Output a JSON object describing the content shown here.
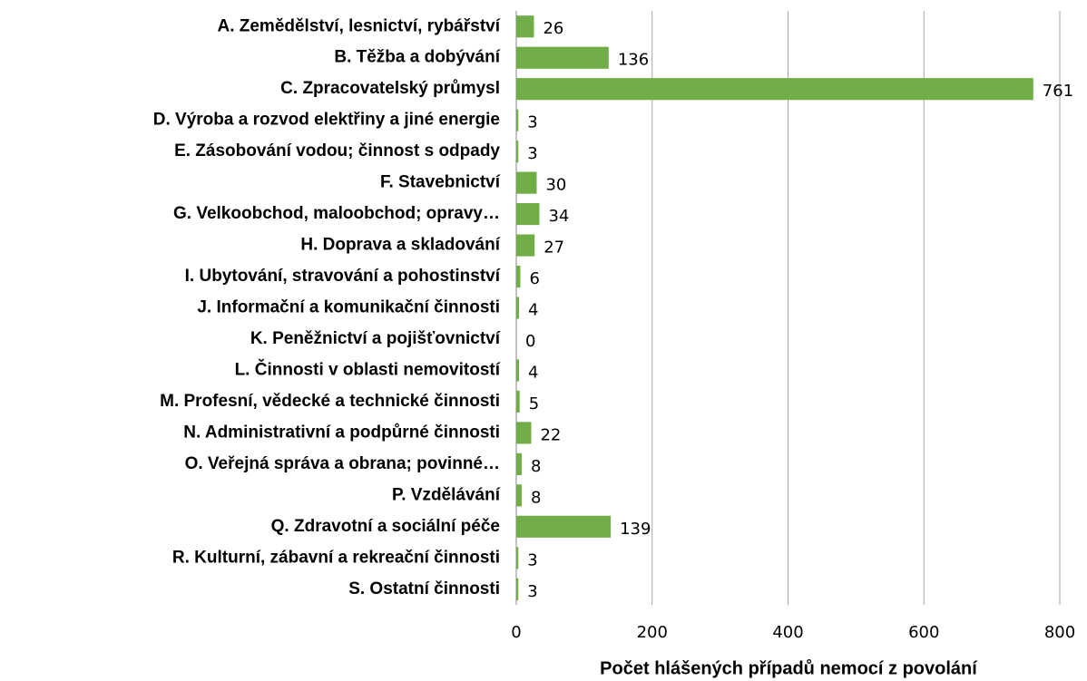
{
  "chart_data": {
    "type": "bar",
    "orientation": "horizontal",
    "xlabel": "Počet hlášených případů nemocí z povolání",
    "categories": [
      "A. Zemědělství, lesnictví, rybářství",
      "B. Těžba a dobývání",
      "C. Zpracovatelský průmysl",
      "D. Výroba a rozvod elektřiny a jiné energie",
      "E. Zásobování vodou; činnost s odpady",
      "F. Stavebnictví",
      "G. Velkoobchod, maloobchod; opravy…",
      "H. Doprava a skladování",
      "I. Ubytování, stravování a pohostinství",
      "J. Informační a komunikační činnosti",
      "K. Peněžnictví a pojišťovnictví",
      "L. Činnosti v oblasti nemovitostí",
      "M. Profesní, vědecké a technické činnosti",
      "N. Administrativní a podpůrné činnosti",
      "O. Veřejná správa a obrana; povinné…",
      "P. Vzdělávání",
      "Q. Zdravotní a sociální péče",
      "R. Kulturní, zábavní a rekreační činnosti",
      "S. Ostatní činnosti"
    ],
    "values": [
      26,
      136,
      761,
      3,
      3,
      30,
      34,
      27,
      6,
      4,
      0,
      4,
      5,
      22,
      8,
      8,
      139,
      3,
      3
    ],
    "color": "#70ad47",
    "xlim": [
      0,
      800
    ],
    "xticks": [
      0,
      200,
      400,
      600,
      800
    ],
    "grid": true
  }
}
